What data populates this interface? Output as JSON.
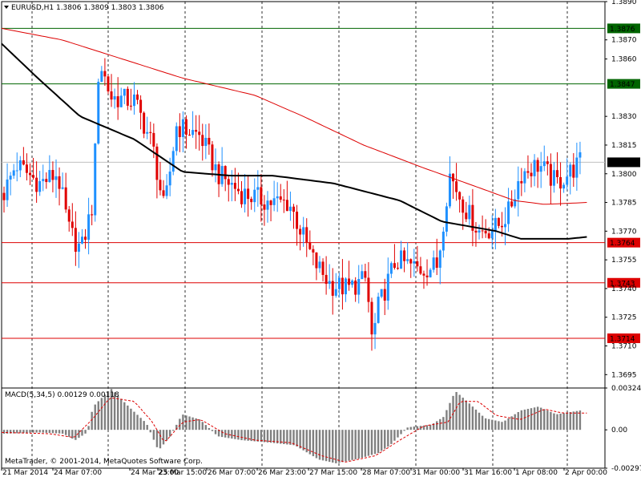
{
  "header": {
    "symbol_line": "EURUSD,H1  1.3806 1.3809 1.3803 1.3806",
    "menu_icon": "triangle-down-icon"
  },
  "footer": {
    "copyright": "MetaTrader, © 2001-2014, MetaQuotes Software Corp."
  },
  "colors": {
    "background": "#ffffff",
    "bull_candle": "#1e90ff",
    "bear_candle": "#e00000",
    "ma_fast": "#000000",
    "ma_slow": "#dd0000",
    "resistance_line": "#006400",
    "support_line": "#dd0000",
    "price_marker": "#000000",
    "macd_hist": "#808080",
    "macd_signal": "#dd0000",
    "grid": "#000000"
  },
  "chart_data": [
    {
      "type": "candlestick",
      "title": "EURUSD,H1",
      "ohlc_current": {
        "open": 1.3806,
        "high": 1.3809,
        "low": 1.3803,
        "close": 1.3806
      },
      "ylim": [
        1.3688,
        1.389
      ],
      "y_ticks": [
        "1.3890",
        "1.3870",
        "1.3860",
        "1.3847",
        "1.3830",
        "1.3815",
        "1.3800",
        "1.3785",
        "1.3770",
        "1.3755",
        "1.3740",
        "1.3725",
        "1.3710",
        "1.3695"
      ],
      "y_ticks_visible": [
        1.389,
        1.387,
        1.386,
        1.383,
        1.3815,
        1.38,
        1.3785,
        1.377,
        1.3755,
        1.374,
        1.3725,
        1.371,
        1.3695
      ],
      "x_ticks": [
        "21 Mar 2014",
        "24 Mar 07:00",
        "24 Mar 23:00",
        "25 Mar 15:00",
        "26 Mar 07:00",
        "26 Mar 23:00",
        "27 Mar 15:00",
        "28 Mar 07:00",
        "31 Mar 00:00",
        "31 Mar 16:00",
        "1 Apr 08:00",
        "2 Apr 00:00"
      ],
      "horizontal_levels": [
        {
          "value": 1.3876,
          "label": "1.3876",
          "kind": "resistance"
        },
        {
          "value": 1.3847,
          "label": "1.3847",
          "kind": "resistance"
        },
        {
          "value": 1.3764,
          "label": "1.3764",
          "kind": "support"
        },
        {
          "value": 1.3743,
          "label": "1.3743",
          "kind": "support"
        },
        {
          "value": 1.3714,
          "label": "1.3714",
          "kind": "support"
        }
      ],
      "current_price": {
        "value": 1.3806,
        "label": "1.3806"
      },
      "moving_average_fast": {
        "keypoints": [
          [
            0,
            1.3868
          ],
          [
            0.06,
            1.385
          ],
          [
            0.13,
            1.383
          ],
          [
            0.22,
            1.3818
          ],
          [
            0.3,
            1.3801
          ],
          [
            0.38,
            1.3799
          ],
          [
            0.45,
            1.3799
          ],
          [
            0.55,
            1.3795
          ],
          [
            0.66,
            1.3786
          ],
          [
            0.73,
            1.3775
          ],
          [
            0.82,
            1.377
          ],
          [
            0.86,
            1.3766
          ],
          [
            0.94,
            1.3766
          ],
          [
            0.97,
            1.3767
          ]
        ]
      },
      "moving_average_slow": {
        "keypoints": [
          [
            0,
            1.3876
          ],
          [
            0.1,
            1.387
          ],
          [
            0.2,
            1.386
          ],
          [
            0.3,
            1.385
          ],
          [
            0.42,
            1.3841
          ],
          [
            0.5,
            1.383
          ],
          [
            0.6,
            1.3815
          ],
          [
            0.7,
            1.3803
          ],
          [
            0.78,
            1.3794
          ],
          [
            0.85,
            1.3786
          ],
          [
            0.9,
            1.3784
          ],
          [
            0.97,
            1.3785
          ]
        ]
      },
      "price_path": {
        "keypoints": [
          [
            0,
            1.379
          ],
          [
            0.02,
            1.3805
          ],
          [
            0.06,
            1.3795
          ],
          [
            0.09,
            1.38
          ],
          [
            0.11,
            1.377
          ],
          [
            0.13,
            1.376
          ],
          [
            0.15,
            1.3785
          ],
          [
            0.16,
            1.386
          ],
          [
            0.18,
            1.384
          ],
          [
            0.22,
            1.3838
          ],
          [
            0.25,
            1.3815
          ],
          [
            0.27,
            1.378
          ],
          [
            0.29,
            1.3825
          ],
          [
            0.33,
            1.382
          ],
          [
            0.36,
            1.38
          ],
          [
            0.4,
            1.379
          ],
          [
            0.45,
            1.3785
          ],
          [
            0.48,
            1.3785
          ],
          [
            0.5,
            1.377
          ],
          [
            0.52,
            1.3755
          ],
          [
            0.55,
            1.3742
          ],
          [
            0.58,
            1.374
          ],
          [
            0.61,
            1.3745
          ],
          [
            0.62,
            1.3712
          ],
          [
            0.63,
            1.373
          ],
          [
            0.66,
            1.3755
          ],
          [
            0.7,
            1.375
          ],
          [
            0.73,
            1.3752
          ],
          [
            0.75,
            1.38
          ],
          [
            0.78,
            1.378
          ],
          [
            0.8,
            1.377
          ],
          [
            0.83,
            1.3772
          ],
          [
            0.85,
            1.378
          ],
          [
            0.87,
            1.38
          ],
          [
            0.9,
            1.3805
          ],
          [
            0.93,
            1.3795
          ],
          [
            0.95,
            1.38
          ],
          [
            0.97,
            1.3806
          ]
        ]
      }
    },
    {
      "type": "bar",
      "title": "MACD(5,34,5) 0.00129 0.00118",
      "ylim": [
        -0.00297,
        0.00324
      ],
      "y_ticks": [
        "0.00324",
        "0.00",
        "-0.00297"
      ],
      "histogram_keypoints": [
        [
          0,
          -0.0003
        ],
        [
          0.06,
          -0.0002
        ],
        [
          0.1,
          -0.0003
        ],
        [
          0.12,
          -0.0008
        ],
        [
          0.14,
          -0.0002
        ],
        [
          0.15,
          0.0018
        ],
        [
          0.18,
          0.0032
        ],
        [
          0.21,
          0.0018
        ],
        [
          0.24,
          0.0005
        ],
        [
          0.26,
          -0.0016
        ],
        [
          0.28,
          -0.0005
        ],
        [
          0.3,
          0.0012
        ],
        [
          0.33,
          0.0008
        ],
        [
          0.36,
          -0.0005
        ],
        [
          0.4,
          -0.0008
        ],
        [
          0.45,
          -0.001
        ],
        [
          0.49,
          -0.0012
        ],
        [
          0.53,
          -0.0023
        ],
        [
          0.56,
          -0.0026
        ],
        [
          0.6,
          -0.0022
        ],
        [
          0.63,
          -0.0018
        ],
        [
          0.65,
          -0.0012
        ],
        [
          0.68,
          0.0002
        ],
        [
          0.72,
          0.0004
        ],
        [
          0.74,
          0.001
        ],
        [
          0.76,
          0.003
        ],
        [
          0.78,
          0.0022
        ],
        [
          0.81,
          0.0009
        ],
        [
          0.84,
          0.0006
        ],
        [
          0.87,
          0.0015
        ],
        [
          0.9,
          0.0018
        ],
        [
          0.93,
          0.0012
        ],
        [
          0.97,
          0.0015
        ]
      ],
      "signal_keypoints": [
        [
          0,
          -0.0002
        ],
        [
          0.08,
          -0.0003
        ],
        [
          0.12,
          -0.0006
        ],
        [
          0.15,
          0.0008
        ],
        [
          0.18,
          0.0025
        ],
        [
          0.22,
          0.0022
        ],
        [
          0.25,
          0.0006
        ],
        [
          0.27,
          -0.001
        ],
        [
          0.3,
          0.0006
        ],
        [
          0.33,
          0.0008
        ],
        [
          0.37,
          -0.0003
        ],
        [
          0.42,
          -0.0008
        ],
        [
          0.48,
          -0.001
        ],
        [
          0.53,
          -0.002
        ],
        [
          0.57,
          -0.0025
        ],
        [
          0.62,
          -0.002
        ],
        [
          0.66,
          -0.0008
        ],
        [
          0.7,
          0.0003
        ],
        [
          0.74,
          0.0006
        ],
        [
          0.76,
          0.0022
        ],
        [
          0.79,
          0.0022
        ],
        [
          0.82,
          0.0011
        ],
        [
          0.86,
          0.0008
        ],
        [
          0.9,
          0.0016
        ],
        [
          0.93,
          0.0013
        ],
        [
          0.97,
          0.0013
        ]
      ]
    }
  ]
}
